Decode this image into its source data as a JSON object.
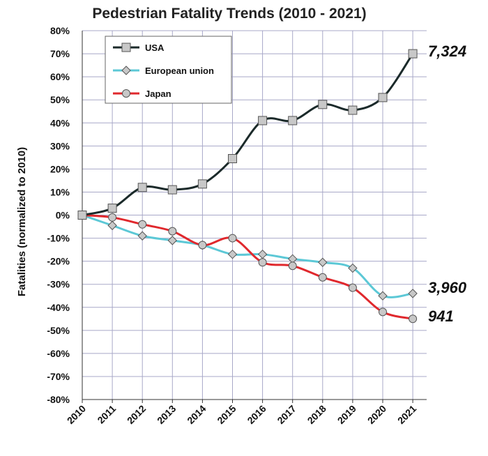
{
  "chart_data": {
    "type": "line",
    "title": "Pedestrian Fatality Trends (2010 - 2021)",
    "xlabel": "",
    "ylabel": "Fatalities (normalized to 2010)",
    "x": [
      "2010",
      "2011",
      "2012",
      "2013",
      "2014",
      "2015",
      "2016",
      "2017",
      "2018",
      "2019",
      "2020",
      "2021"
    ],
    "ylim": [
      -80,
      80
    ],
    "y_ticks": [
      80,
      70,
      60,
      50,
      40,
      30,
      20,
      10,
      0,
      -10,
      -20,
      -30,
      -40,
      -50,
      -60,
      -70,
      -80
    ],
    "y_tick_labels": [
      "80%",
      "70%",
      "60%",
      "50%",
      "40%",
      "30%",
      "20%",
      "10%",
      "0%",
      "-10%",
      "-20%",
      "-30%",
      "-40%",
      "-50%",
      "-60%",
      "-70%",
      "-80%"
    ],
    "grid": true,
    "legend_position": "top-left",
    "series": [
      {
        "name": "USA",
        "color": "#1b2a2a",
        "marker": "square",
        "values": [
          0,
          3,
          12,
          11,
          13.5,
          24.5,
          41,
          41,
          48,
          45.5,
          51,
          70
        ],
        "end_label": "7,324"
      },
      {
        "name": "European union",
        "color": "#5cc8d6",
        "marker": "diamond",
        "values": [
          0,
          -4.5,
          -9,
          -11,
          -13,
          -17,
          -17,
          -19,
          -20.5,
          -23,
          -35,
          -34
        ],
        "end_label": "3,960"
      },
      {
        "name": "Japan",
        "color": "#e0282d",
        "marker": "circle",
        "values": [
          0,
          -1,
          -4,
          -7,
          -13,
          -10,
          -20.5,
          -22,
          -27,
          -31.5,
          -42,
          -45
        ],
        "end_label": "941"
      }
    ]
  }
}
